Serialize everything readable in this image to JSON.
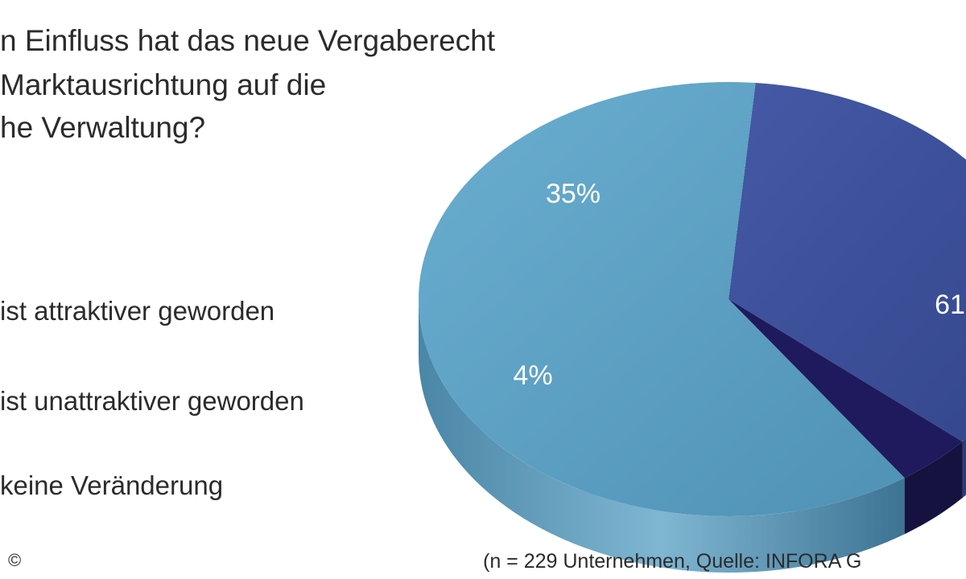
{
  "title_lines": [
    "n Einfluss hat das neue Vergaberecht",
    "Marktausrichtung auf die",
    "he Verwaltung?"
  ],
  "copyright": "©",
  "source": "(n = 229 Unternehmen, Quelle: INFORA G",
  "colors": {
    "attraktiver": "#3a4f9a",
    "unattraktiver": "#1f1a5e",
    "keine": "#5c9fc2"
  },
  "chart_data": {
    "type": "pie",
    "title": "",
    "categories": [
      "ist attraktiver geworden",
      "ist unattraktiver geworden",
      "keine Veränderung"
    ],
    "values": [
      35,
      4,
      61
    ],
    "value_labels": [
      "35%",
      "4%",
      "61"
    ],
    "legend": "left",
    "style": "3d"
  }
}
